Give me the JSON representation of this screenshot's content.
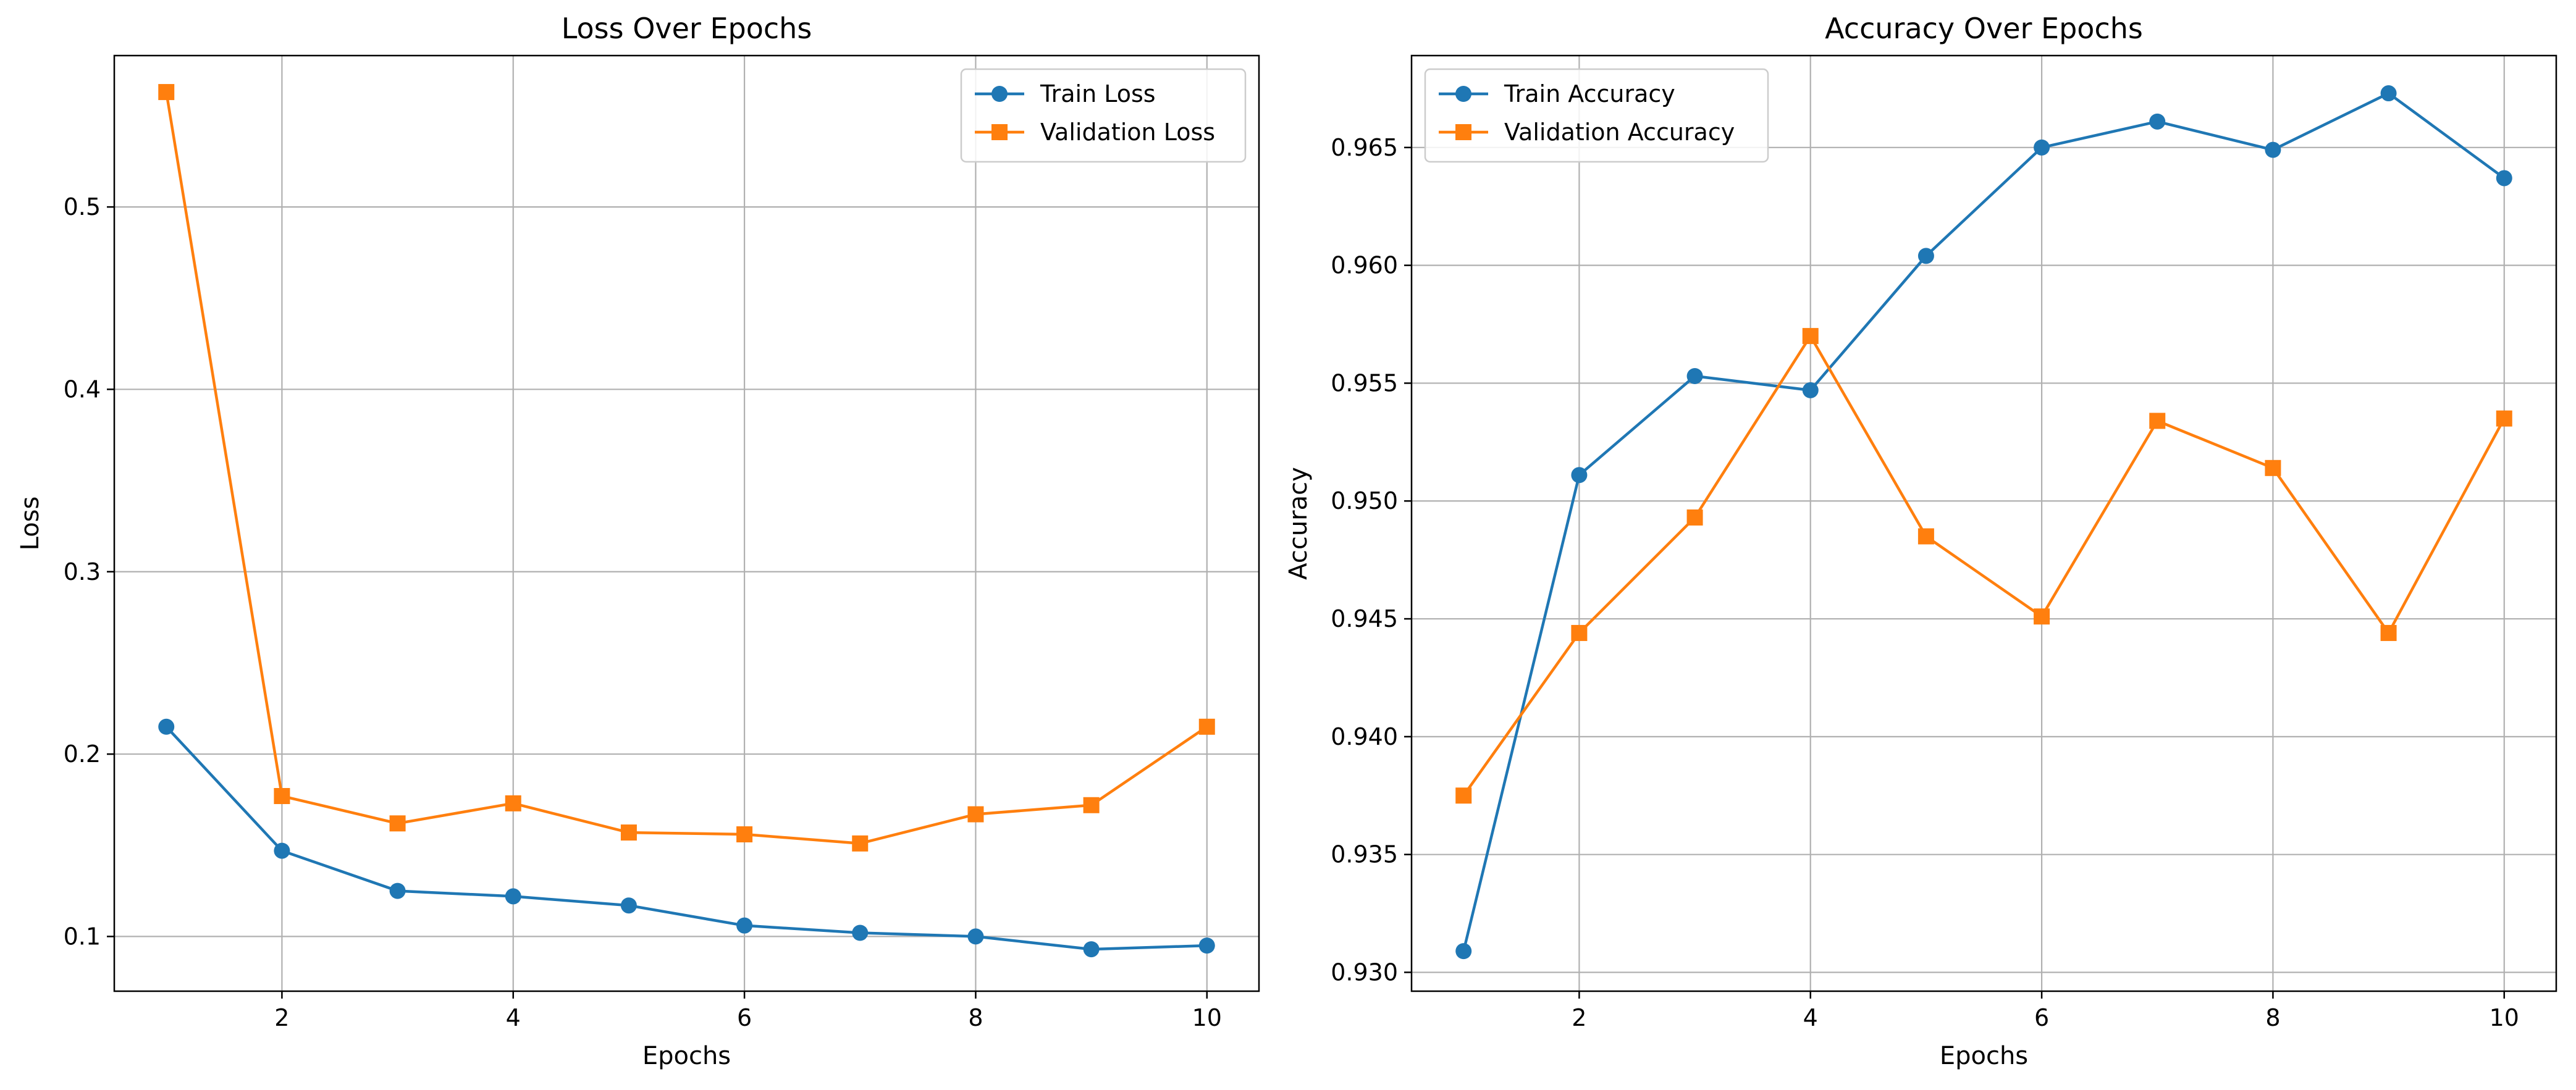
{
  "chart_data": [
    {
      "type": "line",
      "title": "Loss Over Epochs",
      "xlabel": "Epochs",
      "ylabel": "Loss",
      "x": [
        1,
        2,
        3,
        4,
        5,
        6,
        7,
        8,
        9,
        10
      ],
      "xlim": [
        0.55,
        10.45
      ],
      "ylim": [
        0.07,
        0.583
      ],
      "xticks": [
        2,
        4,
        6,
        8,
        10
      ],
      "xtick_labels": [
        "2",
        "4",
        "6",
        "8",
        "10"
      ],
      "yticks": [
        0.1,
        0.2,
        0.3,
        0.4,
        0.5
      ],
      "ytick_labels": [
        "0.1",
        "0.2",
        "0.3",
        "0.4",
        "0.5"
      ],
      "grid": true,
      "legend_position": "upper right",
      "series": [
        {
          "name": "Train Loss",
          "color": "#1f77b4",
          "marker": "circle",
          "values": [
            0.215,
            0.147,
            0.125,
            0.122,
            0.117,
            0.106,
            0.102,
            0.1,
            0.093,
            0.095
          ]
        },
        {
          "name": "Validation Loss",
          "color": "#ff7f0e",
          "marker": "square",
          "values": [
            0.563,
            0.177,
            0.162,
            0.173,
            0.157,
            0.156,
            0.151,
            0.167,
            0.172,
            0.215
          ]
        }
      ]
    },
    {
      "type": "line",
      "title": "Accuracy Over Epochs",
      "xlabel": "Epochs",
      "ylabel": "Accuracy",
      "x": [
        1,
        2,
        3,
        4,
        5,
        6,
        7,
        8,
        9,
        10
      ],
      "xlim": [
        0.55,
        10.45
      ],
      "ylim": [
        0.9292,
        0.9689
      ],
      "xticks": [
        2,
        4,
        6,
        8,
        10
      ],
      "xtick_labels": [
        "2",
        "4",
        "6",
        "8",
        "10"
      ],
      "yticks": [
        0.93,
        0.935,
        0.94,
        0.945,
        0.95,
        0.955,
        0.96,
        0.965
      ],
      "ytick_labels": [
        "0.930",
        "0.935",
        "0.940",
        "0.945",
        "0.950",
        "0.955",
        "0.960",
        "0.965"
      ],
      "grid": true,
      "legend_position": "upper left",
      "series": [
        {
          "name": "Train Accuracy",
          "color": "#1f77b4",
          "marker": "circle",
          "values": [
            0.9309,
            0.9511,
            0.9553,
            0.9547,
            0.9604,
            0.965,
            0.9661,
            0.9649,
            0.9673,
            0.9637
          ]
        },
        {
          "name": "Validation Accuracy",
          "color": "#ff7f0e",
          "marker": "square",
          "values": [
            0.9375,
            0.9444,
            0.9493,
            0.957,
            0.9485,
            0.9451,
            0.9534,
            0.9514,
            0.9444,
            0.9535
          ]
        }
      ]
    }
  ]
}
